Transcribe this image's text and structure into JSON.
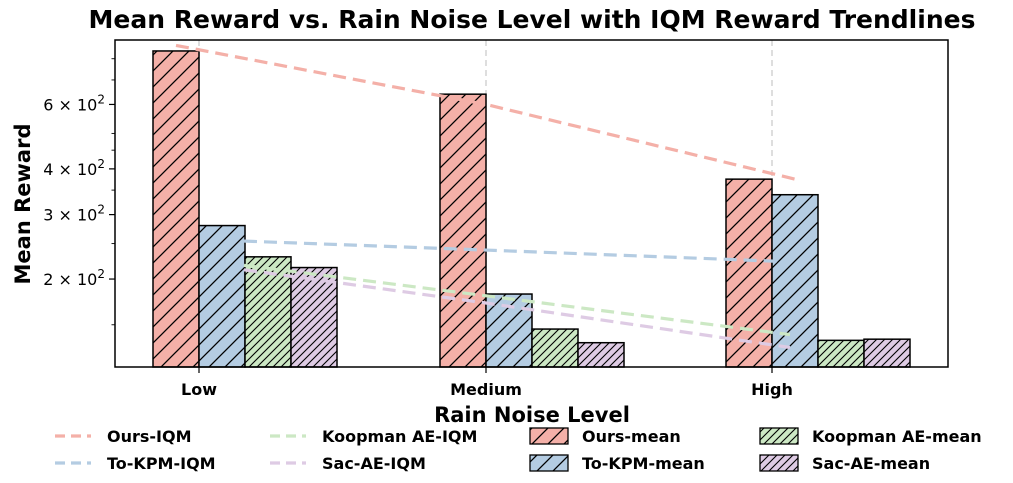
{
  "chart_data": {
    "type": "bar",
    "title": "Mean Reward vs. Rain Noise Level with IQM Reward Trendlines",
    "xlabel": "Rain Noise Level",
    "ylabel": "Mean Reward",
    "categories": [
      "Low",
      "Medium",
      "High"
    ],
    "yscale": "log",
    "ylim": [
      115,
      900
    ],
    "yticks": [
      {
        "value": 200,
        "label": "2 × 10²"
      },
      {
        "value": 300,
        "label": "3 × 10²"
      },
      {
        "value": 400,
        "label": "4 × 10²"
      },
      {
        "value": 600,
        "label": "6 × 10²"
      }
    ],
    "grid": "vertical dashed at categories",
    "series": [
      {
        "name": "Ours-mean",
        "values": [
          840,
          640,
          375
        ],
        "color": "#f4b0a8",
        "hatch": "/"
      },
      {
        "name": "To-KPM-mean",
        "values": [
          280,
          182,
          340
        ],
        "color": "#b4cce2",
        "hatch": "/"
      },
      {
        "name": "Koopman AE-mean",
        "values": [
          230,
          146,
          136
        ],
        "color": "#cce8c4",
        "hatch": "//"
      },
      {
        "name": "Sac-AE-mean",
        "values": [
          215,
          134,
          137
        ],
        "color": "#decbe4",
        "hatch": "//"
      }
    ],
    "trendlines": [
      {
        "name": "Ours-IQM",
        "values": [
          870,
          600,
          375
        ],
        "color": "#f4b0a8"
      },
      {
        "name": "To-KPM-IQM",
        "values": [
          254,
          240,
          223
        ],
        "color": "#b4cce2"
      },
      {
        "name": "Koopman AE-IQM",
        "values": [
          218,
          180,
          141
        ],
        "color": "#cce8c4"
      },
      {
        "name": "Sac-AE-IQM",
        "values": [
          212,
          172,
          130
        ],
        "color": "#decbe4"
      }
    ],
    "legend": {
      "position": "bottom",
      "entries": [
        "Ours-IQM",
        "Koopman AE-IQM",
        "Ours-mean",
        "Koopman AE-mean",
        "To-KPM-IQM",
        "Sac-AE-IQM",
        "To-KPM-mean",
        "Sac-AE-mean"
      ]
    }
  }
}
